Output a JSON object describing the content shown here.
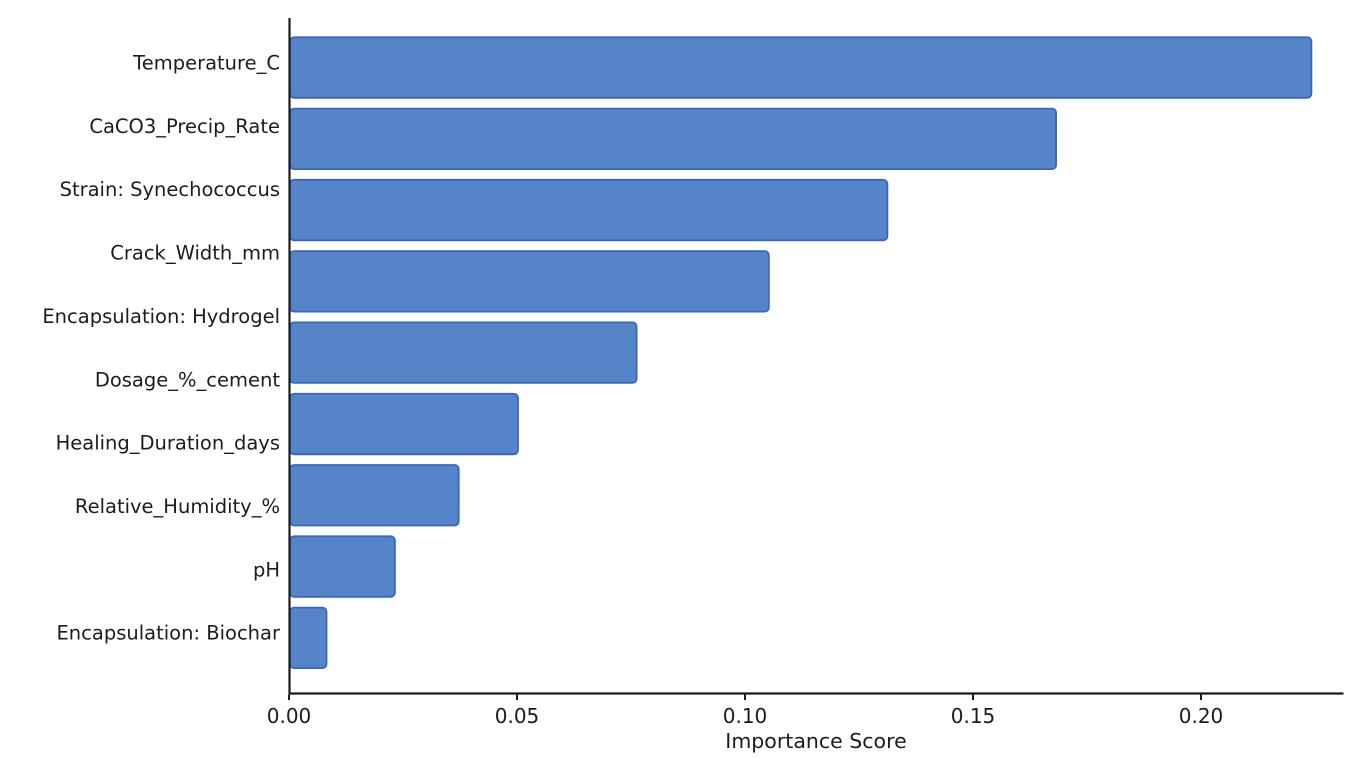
{
  "figure": {
    "background": "#ffffff"
  },
  "chart_data": {
    "type": "bar",
    "orientation": "horizontal",
    "title": "",
    "xlabel": "Importance Score",
    "ylabel": "",
    "categories": [
      "Temperature_C",
      "CaCO3_Precip_Rate",
      "Strain: Synechococcus",
      "Crack_Width_mm",
      "Encapsulation: Hydrogel",
      "Dosage_%_cement",
      "Healing_Duration_days",
      "Relative_Humidity_%",
      "pH",
      "Encapsulation: Biochar"
    ],
    "values": [
      0.224,
      0.168,
      0.131,
      0.105,
      0.076,
      0.05,
      0.037,
      0.023,
      0.008
    ],
    "bars_rendered": 9,
    "labels_rendered": 10,
    "x_tick_labels": [
      "0.00",
      "0.05",
      "0.10",
      "0.15",
      "0.20"
    ],
    "x_tick_values": [
      0,
      0.05,
      0.1,
      0.15,
      0.2
    ],
    "xlim": [
      0,
      0.231
    ],
    "grid": false,
    "legend": null,
    "colors": {
      "bar_fill": "#5585c8",
      "bar_edge": "#3768bd",
      "axis": "#1c1c1c",
      "text": "#1c1c1c"
    }
  }
}
